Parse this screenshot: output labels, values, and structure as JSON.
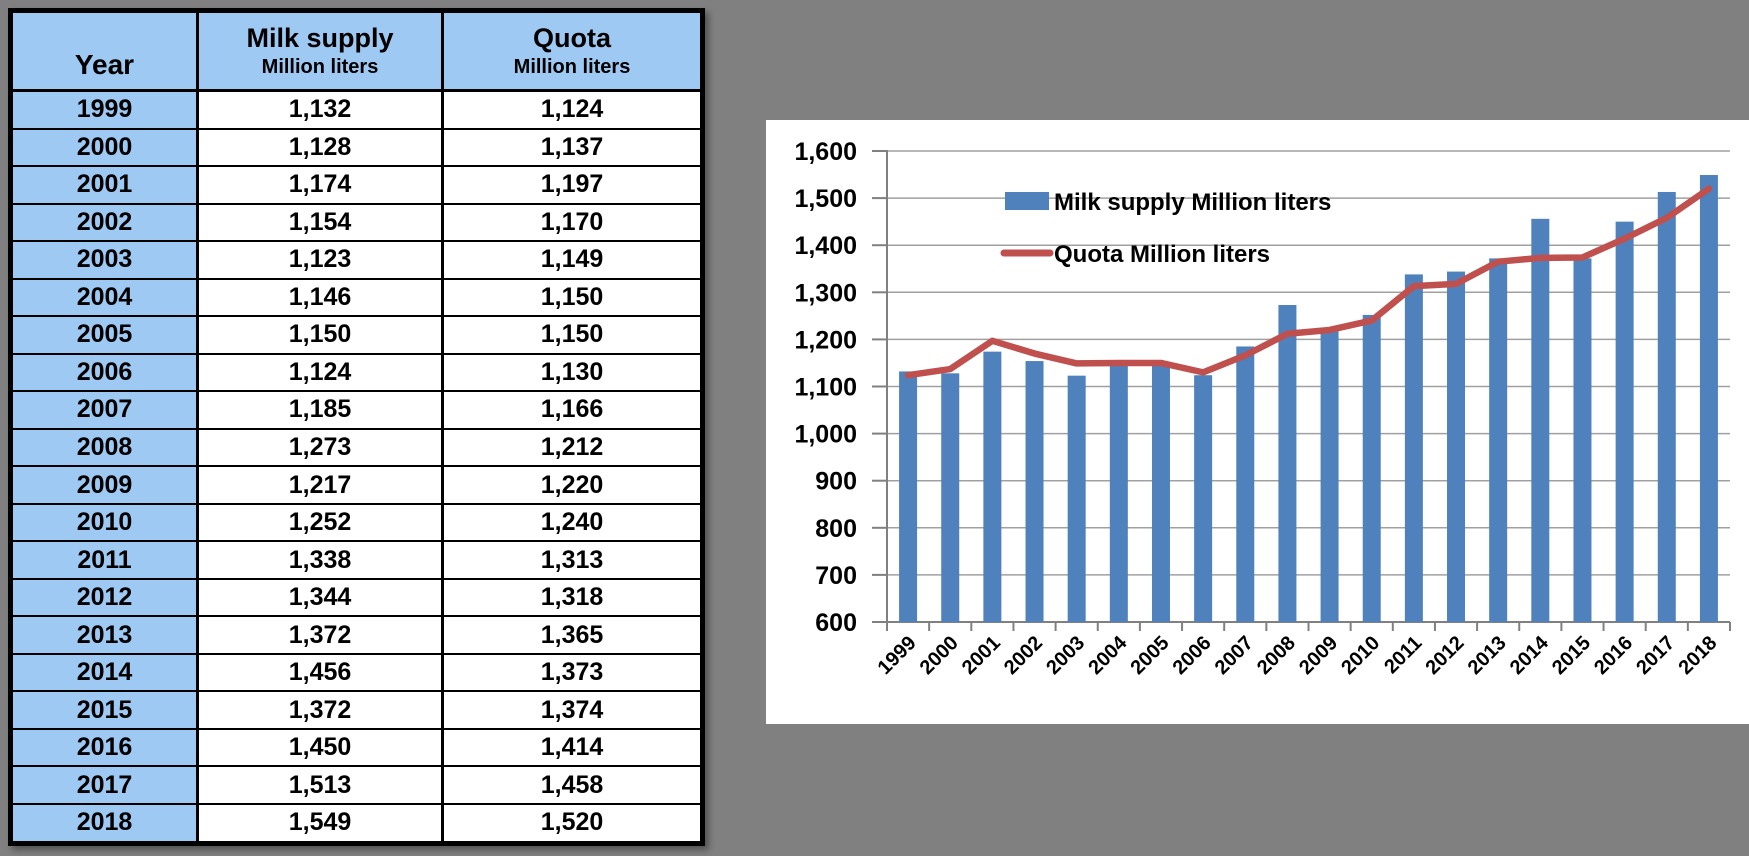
{
  "colors": {
    "page_background": "#808080",
    "table_header_blue": "#9DC9F2",
    "bar_blue": "#4F81BD",
    "line_red": "#C0504D",
    "gridline": "#A0A0A0",
    "axis": "#808080",
    "text": "#000000"
  },
  "table": {
    "columns": [
      {
        "title": "Year",
        "subtitle": ""
      },
      {
        "title": "Milk supply",
        "subtitle": "Million liters"
      },
      {
        "title": "Quota",
        "subtitle": "Million liters"
      }
    ],
    "rows": [
      [
        "1999",
        "1,132",
        "1,124"
      ],
      [
        "2000",
        "1,128",
        "1,137"
      ],
      [
        "2001",
        "1,174",
        "1,197"
      ],
      [
        "2002",
        "1,154",
        "1,170"
      ],
      [
        "2003",
        "1,123",
        "1,149"
      ],
      [
        "2004",
        "1,146",
        "1,150"
      ],
      [
        "2005",
        "1,150",
        "1,150"
      ],
      [
        "2006",
        "1,124",
        "1,130"
      ],
      [
        "2007",
        "1,185",
        "1,166"
      ],
      [
        "2008",
        "1,273",
        "1,212"
      ],
      [
        "2009",
        "1,217",
        "1,220"
      ],
      [
        "2010",
        "1,252",
        "1,240"
      ],
      [
        "2011",
        "1,338",
        "1,313"
      ],
      [
        "2012",
        "1,344",
        "1,318"
      ],
      [
        "2013",
        "1,372",
        "1,365"
      ],
      [
        "2014",
        "1,456",
        "1,373"
      ],
      [
        "2015",
        "1,372",
        "1,374"
      ],
      [
        "2016",
        "1,450",
        "1,414"
      ],
      [
        "2017",
        "1,513",
        "1,458"
      ],
      [
        "2018",
        "1,549",
        "1,520"
      ]
    ]
  },
  "chart_data": {
    "type": "bar",
    "categories": [
      "1999",
      "2000",
      "2001",
      "2002",
      "2003",
      "2004",
      "2005",
      "2006",
      "2007",
      "2008",
      "2009",
      "2010",
      "2011",
      "2012",
      "2013",
      "2014",
      "2015",
      "2016",
      "2017",
      "2018"
    ],
    "series": [
      {
        "name": "Milk supply Million liters",
        "type": "bar",
        "color": "#4F81BD",
        "values": [
          1132,
          1128,
          1174,
          1154,
          1123,
          1146,
          1150,
          1124,
          1185,
          1273,
          1217,
          1252,
          1338,
          1344,
          1372,
          1456,
          1372,
          1450,
          1513,
          1549
        ]
      },
      {
        "name": "Quota Million liters",
        "type": "line",
        "color": "#C0504D",
        "values": [
          1124,
          1137,
          1197,
          1170,
          1149,
          1150,
          1150,
          1130,
          1166,
          1212,
          1220,
          1240,
          1313,
          1318,
          1365,
          1373,
          1374,
          1414,
          1458,
          1520
        ]
      }
    ],
    "title": "",
    "xlabel": "",
    "ylabel": "",
    "ylim": [
      600,
      1600
    ],
    "ytick_step": 100,
    "ytick_labels": [
      "600",
      "700",
      "800",
      "900",
      "1,000",
      "1,100",
      "1,200",
      "1,300",
      "1,400",
      "1,500",
      "1,600"
    ],
    "grid": true,
    "legend_position": "inside-top-center"
  }
}
